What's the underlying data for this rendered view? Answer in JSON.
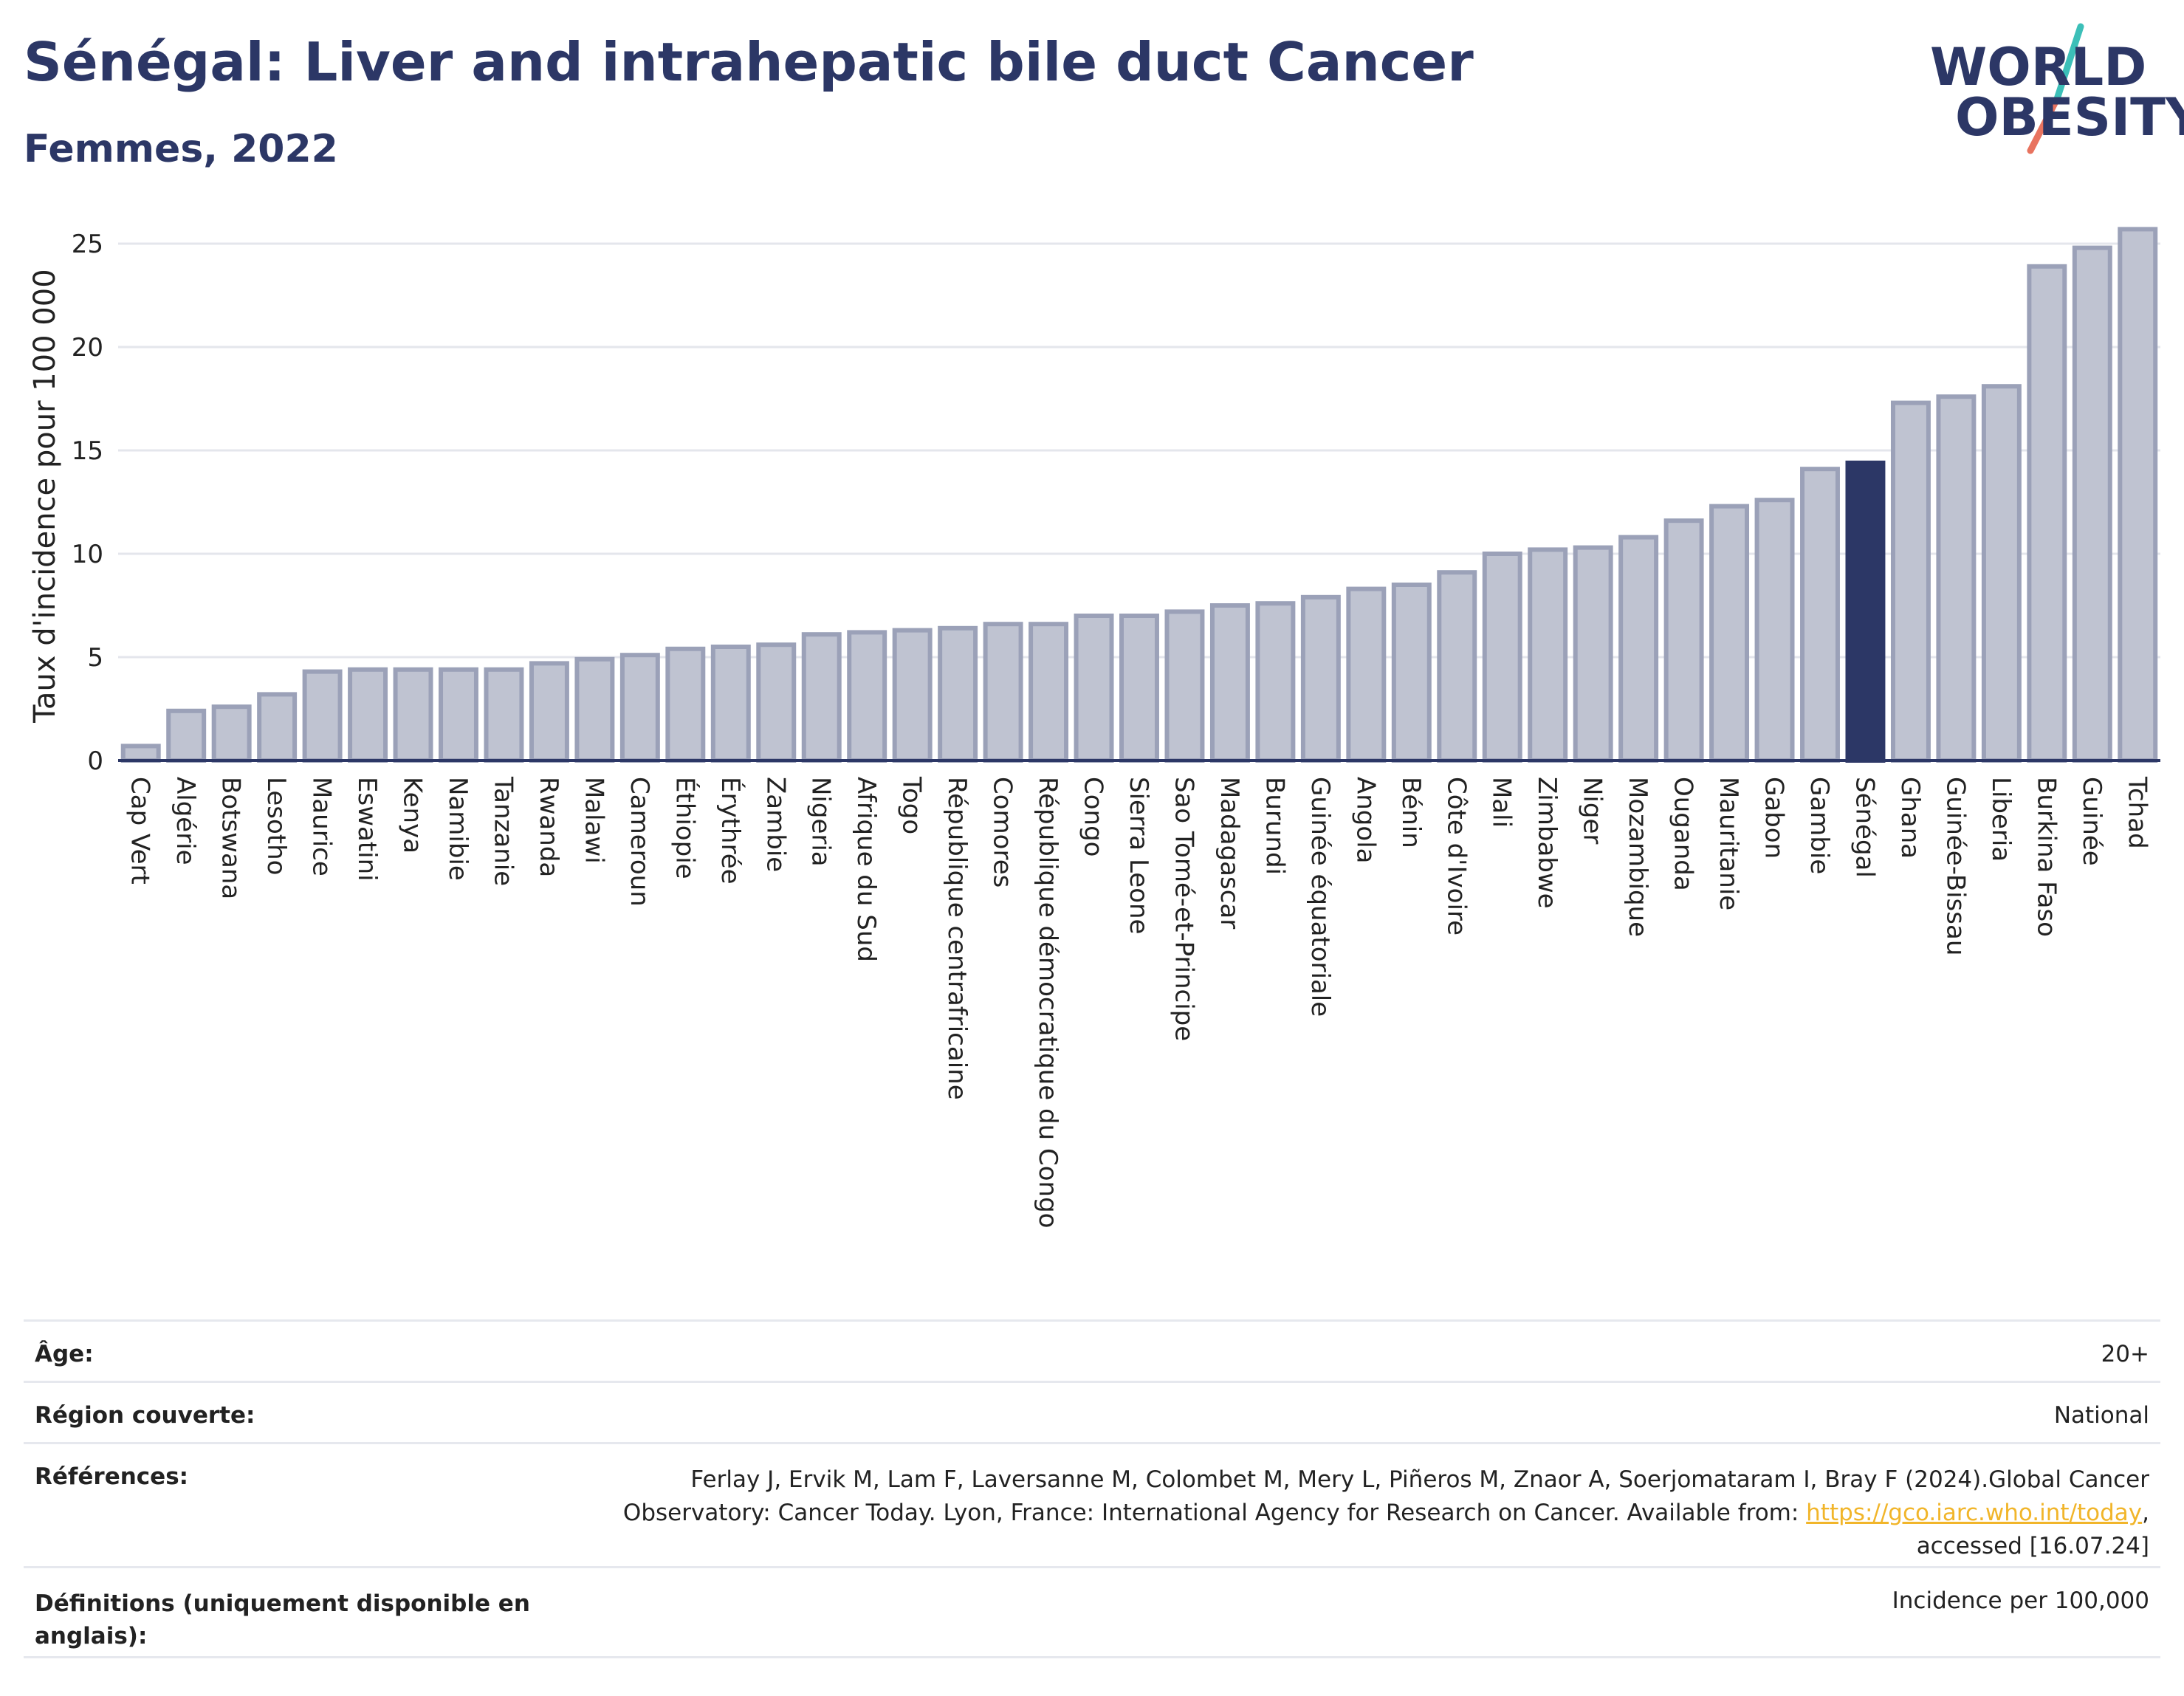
{
  "title": "Sénégal: Liver and intrahepatic bile duct Cancer",
  "subtitle": "Femmes, 2022",
  "logo": {
    "line1": "WORLD",
    "line2": "OBESITY",
    "accent_teal": "#3cbfb8",
    "accent_red": "#e8735f"
  },
  "chart_data": {
    "type": "bar",
    "ylabel": "Taux d'incidence pour 100 000",
    "xlabel": "",
    "ylim": [
      0,
      26
    ],
    "yticks": [
      0,
      5,
      10,
      15,
      20,
      25
    ],
    "grid": true,
    "highlight": "Sénégal",
    "bar_color": "#bfc3d1",
    "bar_edge_color": "#9ba1b8",
    "highlight_color": "#2c3766",
    "categories": [
      "Cap Vert",
      "Algérie",
      "Botswana",
      "Lesotho",
      "Maurice",
      "Eswatini",
      "Kenya",
      "Namibie",
      "Tanzanie",
      "Rwanda",
      "Malawi",
      "Cameroun",
      "Éthiopie",
      "Érythrée",
      "Zambie",
      "Nigeria",
      "Afrique du Sud",
      "Togo",
      "République centrafricaine",
      "Comores",
      "République démocratique du Congo",
      "Congo",
      "Sierra Leone",
      "Sao Tomé-et-Principe",
      "Madagascar",
      "Burundi",
      "Guinée équatoriale",
      "Angola",
      "Bénin",
      "Côte d'Ivoire",
      "Mali",
      "Zimbabwe",
      "Niger",
      "Mozambique",
      "Ouganda",
      "Mauritanie",
      "Gabon",
      "Gambie",
      "Sénégal",
      "Ghana",
      "Guinée-Bissau",
      "Liberia",
      "Burkina Faso",
      "Guinée",
      "Tchad"
    ],
    "values": [
      0.7,
      2.4,
      2.6,
      3.2,
      4.3,
      4.4,
      4.4,
      4.4,
      4.4,
      4.7,
      4.9,
      5.1,
      5.4,
      5.5,
      5.6,
      6.1,
      6.2,
      6.3,
      6.4,
      6.6,
      6.6,
      7.0,
      7.0,
      7.2,
      7.5,
      7.6,
      7.9,
      8.3,
      8.5,
      9.1,
      10.0,
      10.2,
      10.3,
      10.8,
      11.6,
      12.3,
      12.6,
      14.1,
      14.4,
      17.3,
      17.6,
      18.1,
      23.9,
      24.8,
      25.7
    ]
  },
  "info": {
    "age": {
      "label": "Âge:",
      "value": "20+"
    },
    "region": {
      "label": "Région couverte:",
      "value": "National"
    },
    "references": {
      "label": "Références:",
      "line1": "Ferlay J, Ervik M, Lam F, Laversanne M, Colombet M, Mery L, Piñeros M, Znaor A, Soerjomataram I, Bray F (2024).Global Cancer",
      "line2_pre": "Observatory: Cancer Today. Lyon, France: International Agency for Research on Cancer. Available from: ",
      "link": "https://gco.iarc.who.int/today",
      "line2_post": ",",
      "line3": "accessed [16.07.24]"
    },
    "definitions": {
      "label_line1": "Définitions (uniquement disponible en",
      "label_line2": "anglais):",
      "value": "Incidence per 100,000"
    }
  }
}
